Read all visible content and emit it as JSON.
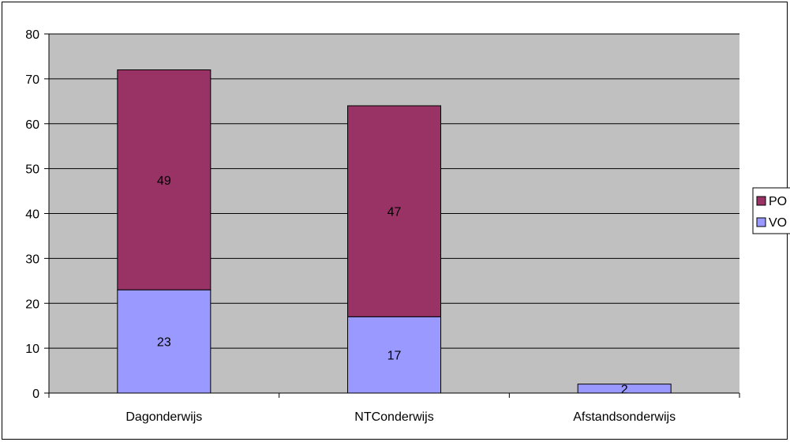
{
  "chart_data": {
    "type": "bar",
    "stacked": true,
    "categories": [
      "Dagonderwijs",
      "NTConderwijs",
      "Afstandsonderwijs"
    ],
    "series": [
      {
        "name": "VO",
        "values": [
          23,
          17,
          2
        ],
        "color": "#9999FF"
      },
      {
        "name": "PO",
        "values": [
          49,
          47,
          0
        ],
        "color": "#993366"
      }
    ],
    "data_labels": [
      {
        "series": "VO",
        "category": "Dagonderwijs",
        "text": "23"
      },
      {
        "series": "PO",
        "category": "Dagonderwijs",
        "text": "49"
      },
      {
        "series": "VO",
        "category": "NTConderwijs",
        "text": "17"
      },
      {
        "series": "PO",
        "category": "NTConderwijs",
        "text": "47"
      },
      {
        "series": "VO",
        "category": "Afstandsonderwijs",
        "text": "2"
      }
    ],
    "ylim": [
      0,
      80
    ],
    "yticks": [
      "0",
      "10",
      "20",
      "30",
      "40",
      "50",
      "60",
      "70",
      "80"
    ],
    "title": "",
    "xlabel": "",
    "ylabel": "",
    "grid": true,
    "legend_position": "right",
    "legend": [
      {
        "label": "PO",
        "color": "#993366"
      },
      {
        "label": "VO",
        "color": "#9999FF"
      }
    ],
    "plot_background": "#C0C0C0"
  }
}
